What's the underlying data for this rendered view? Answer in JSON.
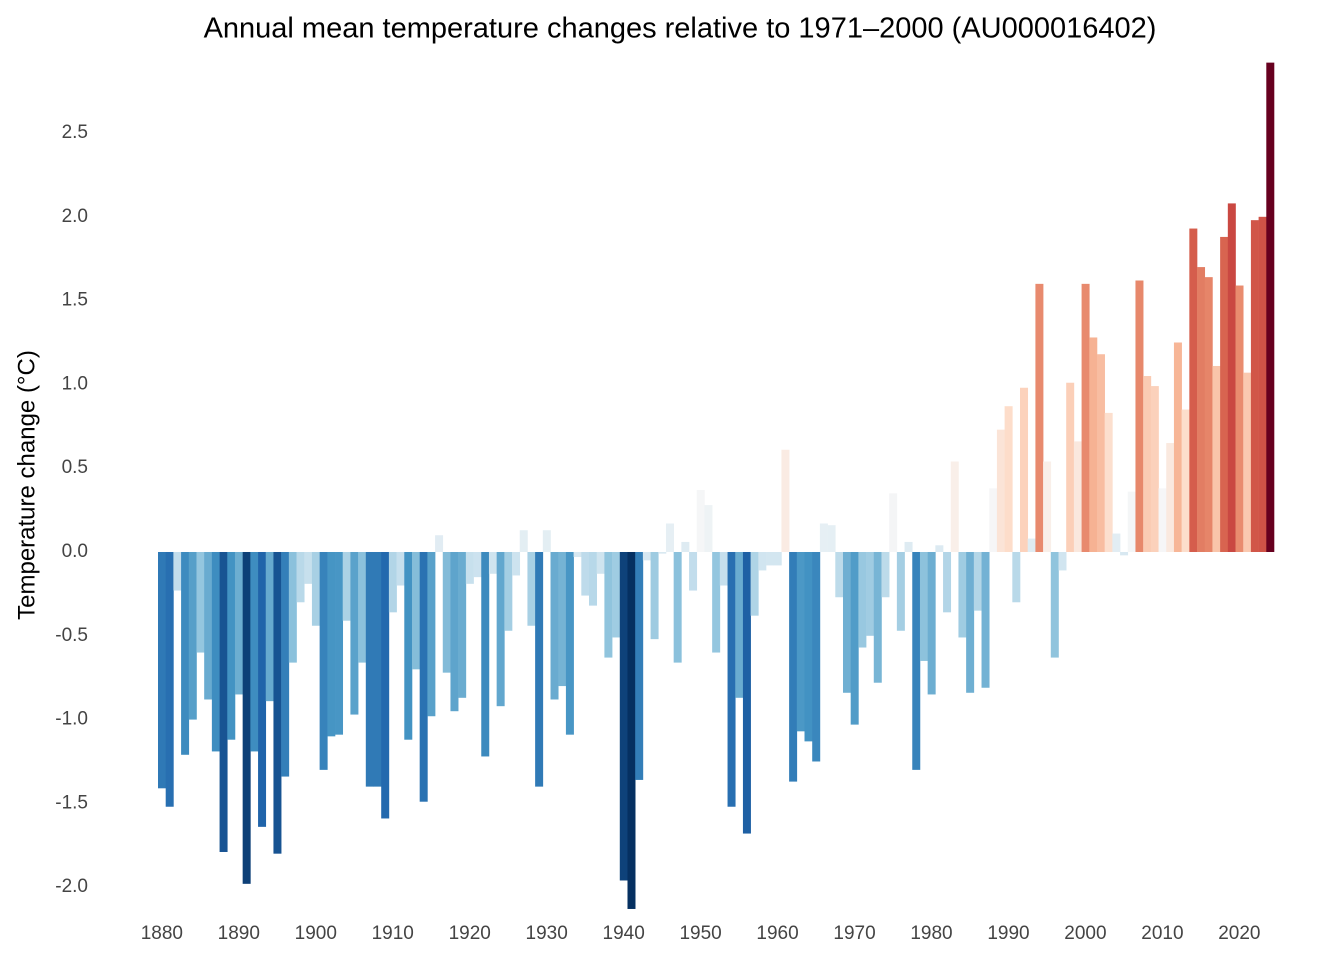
{
  "chart_data": {
    "type": "bar",
    "title": "Annual mean temperature changes relative to 1971–2000 (AU000016402)",
    "y_label": "Temperature change (°C)",
    "x": [
      1880,
      1881,
      1882,
      1883,
      1884,
      1885,
      1886,
      1887,
      1888,
      1889,
      1890,
      1891,
      1892,
      1893,
      1894,
      1895,
      1896,
      1897,
      1898,
      1899,
      1900,
      1901,
      1902,
      1903,
      1904,
      1905,
      1906,
      1907,
      1908,
      1909,
      1910,
      1911,
      1912,
      1913,
      1914,
      1915,
      1916,
      1917,
      1918,
      1919,
      1920,
      1921,
      1922,
      1923,
      1924,
      1925,
      1926,
      1927,
      1928,
      1929,
      1930,
      1931,
      1932,
      1933,
      1934,
      1935,
      1936,
      1937,
      1938,
      1939,
      1940,
      1941,
      1942,
      1943,
      1944,
      1945,
      1946,
      1947,
      1948,
      1949,
      1950,
      1951,
      1952,
      1953,
      1954,
      1955,
      1956,
      1957,
      1958,
      1959,
      1960,
      1961,
      1962,
      1963,
      1964,
      1965,
      1966,
      1967,
      1968,
      1969,
      1970,
      1971,
      1972,
      1973,
      1974,
      1975,
      1976,
      1977,
      1978,
      1979,
      1980,
      1981,
      1982,
      1983,
      1984,
      1985,
      1986,
      1987,
      1988,
      1989,
      1990,
      1991,
      1992,
      1993,
      1994,
      1995,
      1996,
      1997,
      1998,
      1999,
      2000,
      2001,
      2002,
      2003,
      2004,
      2005,
      2006,
      2007,
      2008,
      2009,
      2010,
      2011,
      2012,
      2013,
      2014,
      2015,
      2016,
      2017,
      2018,
      2019,
      2020,
      2021,
      2022,
      2023,
      2024
    ],
    "values": [
      -1.41,
      -1.52,
      -0.23,
      -1.21,
      -1.0,
      -0.6,
      -0.88,
      -1.19,
      -1.79,
      -1.12,
      -0.85,
      -1.98,
      -1.19,
      -1.64,
      -0.89,
      -1.8,
      -1.34,
      -0.66,
      -0.3,
      -0.19,
      -0.44,
      -1.3,
      -1.1,
      -1.09,
      -0.41,
      -0.97,
      -0.66,
      -1.4,
      -1.4,
      -1.59,
      -0.36,
      -0.2,
      -1.12,
      -0.7,
      -1.49,
      -0.98,
      0.1,
      -0.72,
      -0.95,
      -0.87,
      -0.19,
      -0.15,
      -1.22,
      -0.13,
      -0.92,
      -0.47,
      -0.14,
      0.13,
      -0.44,
      -1.4,
      0.13,
      -0.88,
      -0.8,
      -1.09,
      -0.03,
      -0.26,
      -0.32,
      -0.13,
      -0.63,
      -0.51,
      -1.96,
      -2.13,
      -1.36,
      -0.05,
      -0.52,
      -0.01,
      0.17,
      -0.66,
      0.06,
      -0.23,
      0.37,
      0.28,
      -0.6,
      -0.2,
      -1.52,
      -0.87,
      -1.68,
      -0.38,
      -0.11,
      -0.08,
      -0.08,
      0.61,
      -1.37,
      -1.07,
      -1.13,
      -1.25,
      0.17,
      0.16,
      -0.27,
      -0.84,
      -1.03,
      -0.57,
      -0.5,
      -0.78,
      -0.27,
      0.35,
      -0.47,
      0.06,
      -1.3,
      -0.65,
      -0.85,
      0.04,
      -0.36,
      0.54,
      -0.51,
      -0.84,
      -0.35,
      -0.81,
      0.38,
      0.73,
      0.87,
      -0.3,
      0.98,
      0.08,
      1.6,
      0.54,
      -0.63,
      -0.11,
      1.01,
      0.66,
      1.6,
      1.28,
      1.18,
      0.83,
      0.11,
      -0.02,
      0.36,
      1.62,
      1.05,
      0.99,
      0.38,
      0.65,
      1.25,
      0.85,
      1.93,
      1.7,
      1.64,
      1.11,
      1.88,
      2.08,
      1.59,
      1.07,
      1.98,
      2.0,
      2.92
    ],
    "colormap": [
      "#053061",
      "#2166ac",
      "#4393c3",
      "#92c5de",
      "#d1e5f0",
      "#f7f7f7",
      "#fddbc7",
      "#f4a582",
      "#d6604d",
      "#b2182b",
      "#67001f"
    ],
    "xlim": [
      1879.5,
      2024.5
    ],
    "xticks": [
      1880,
      1890,
      1900,
      1910,
      1920,
      1930,
      1940,
      1950,
      1960,
      1970,
      1980,
      1990,
      2000,
      2010,
      2020
    ],
    "ylim": [
      -2.2,
      2.95
    ],
    "yticks": [
      {
        "value": -2,
        "label": "-2.0"
      },
      -1.5,
      {
        "value": -1,
        "label": "-1.0"
      },
      -0.5,
      {
        "value": 0,
        "label": "0.0"
      },
      0.5,
      {
        "value": 1,
        "label": "1.0"
      },
      1.5,
      {
        "value": 2,
        "label": "2.0"
      },
      2.5
    ],
    "grid": false
  }
}
